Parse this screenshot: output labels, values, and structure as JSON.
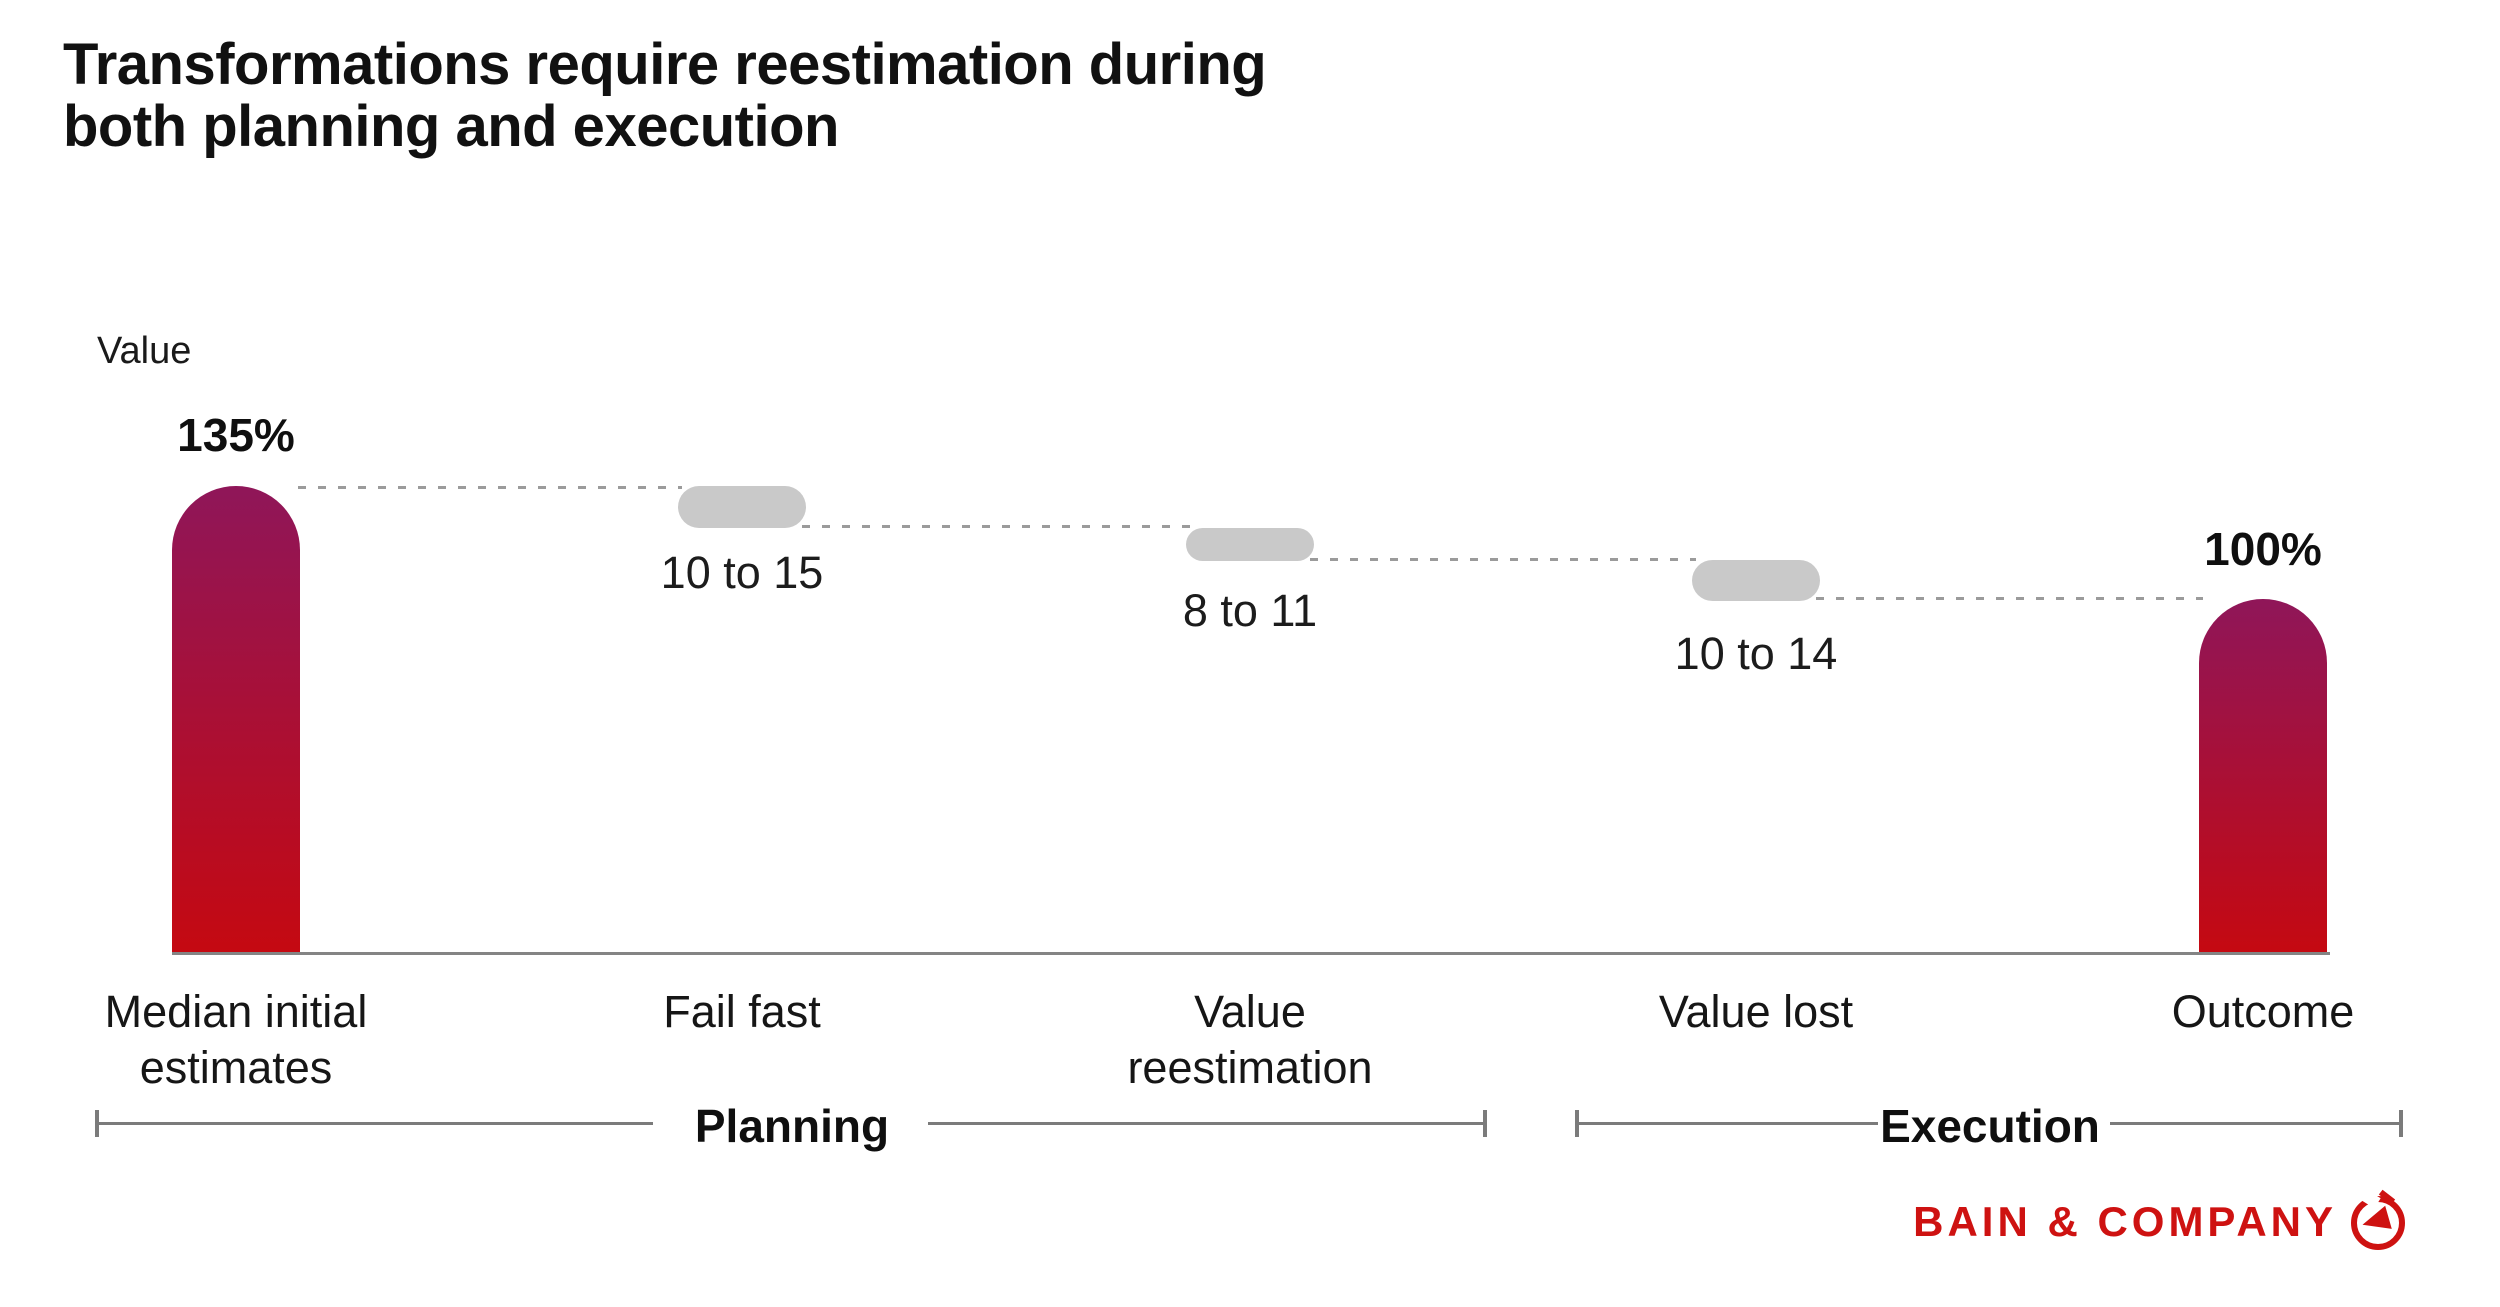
{
  "chart_data": {
    "type": "waterfall",
    "title": "Transformations require reestimation during both planning and execution",
    "title_line1": "Transformations require reestimation during",
    "title_line2": "both planning and execution",
    "ylabel": "Value",
    "grid": false,
    "columns": [
      {
        "category": "Median initial estimates",
        "kind": "bar",
        "value_pct": 135,
        "value_label": "135%"
      },
      {
        "category": "Fail fast",
        "kind": "loss-range",
        "range_pct": [
          10,
          15
        ],
        "range_label": "10 to 15"
      },
      {
        "category": "Value reestimation",
        "kind": "loss-range",
        "range_pct": [
          8,
          11
        ],
        "range_label": "8 to 11"
      },
      {
        "category": "Value lost",
        "kind": "loss-range",
        "range_pct": [
          10,
          14
        ],
        "range_label": "10 to 14"
      },
      {
        "category": "Outcome",
        "kind": "bar",
        "value_pct": 100,
        "value_label": "100%"
      }
    ],
    "phases": [
      {
        "label": "Planning",
        "covers": [
          "Median initial estimates",
          "Fail fast",
          "Value reestimation"
        ]
      },
      {
        "label": "Execution",
        "covers": [
          "Value lost",
          "Outcome"
        ]
      }
    ]
  },
  "branding": {
    "logo_text": "BAIN & COMPANY"
  },
  "colors": {
    "bar_gradient_top": "#8F1659",
    "bar_gradient_bottom": "#C50911",
    "pill_gray": "#C9C9C9",
    "dash_gray": "#9B9B9B",
    "baseline_gray": "#848484",
    "bracket_gray": "#7B7B7B",
    "logo_red": "#CE1211",
    "text_black": "#121212"
  }
}
